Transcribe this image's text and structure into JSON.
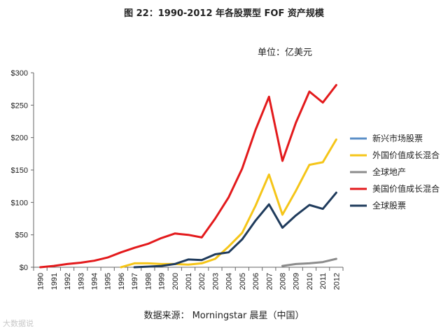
{
  "chart_data": {
    "type": "line",
    "title": "图 22：1990-2012 年各股票型 FOF 资产规模",
    "unit_label": "单位：亿美元",
    "source": "数据来源：   Morningstar 晨星（中国）",
    "watermark": "大数据说",
    "ylim": [
      0,
      300
    ],
    "yticks": [
      "$0",
      "$50",
      "$100",
      "$150",
      "$200",
      "$250",
      "$300"
    ],
    "ytick_values": [
      0,
      50,
      100,
      150,
      200,
      250,
      300
    ],
    "x": [
      "1990",
      "1991",
      "1992",
      "1993",
      "1994",
      "1995",
      "1996",
      "1997",
      "1998",
      "1999",
      "2000",
      "2001",
      "2002",
      "2003",
      "2004",
      "2005",
      "2006",
      "2007",
      "2008",
      "2009",
      "2010",
      "2011",
      "2012"
    ],
    "legend_position": "right",
    "series": [
      {
        "name": "新兴市场股票",
        "color": "#5b8fc7",
        "values": [
          null,
          null,
          null,
          null,
          null,
          null,
          null,
          null,
          null,
          null,
          null,
          null,
          null,
          null,
          null,
          null,
          null,
          null,
          null,
          null,
          null,
          null,
          null
        ]
      },
      {
        "name": "外国价值成长混合",
        "color": "#f5c518",
        "values": [
          null,
          null,
          null,
          null,
          null,
          null,
          0,
          6,
          6,
          5,
          5,
          4,
          6,
          13,
          32,
          53,
          95,
          143,
          81,
          118,
          158,
          162,
          197
        ]
      },
      {
        "name": "全球地产",
        "color": "#8c8c8c",
        "values": [
          null,
          null,
          null,
          null,
          null,
          null,
          null,
          null,
          null,
          null,
          null,
          null,
          null,
          null,
          null,
          null,
          null,
          null,
          2,
          5,
          6,
          8,
          13
        ]
      },
      {
        "name": "美国价值成长混合",
        "color": "#e31a1c",
        "values": [
          0,
          2,
          5,
          7,
          10,
          15,
          23,
          30,
          36,
          45,
          52,
          50,
          46,
          75,
          108,
          152,
          212,
          263,
          164,
          223,
          271,
          254,
          281
        ]
      },
      {
        "name": "全球股票",
        "color": "#1f3b5c",
        "values": [
          null,
          null,
          null,
          null,
          null,
          null,
          null,
          0,
          1,
          2,
          5,
          12,
          11,
          20,
          23,
          43,
          72,
          97,
          61,
          80,
          96,
          90,
          115
        ]
      }
    ]
  }
}
